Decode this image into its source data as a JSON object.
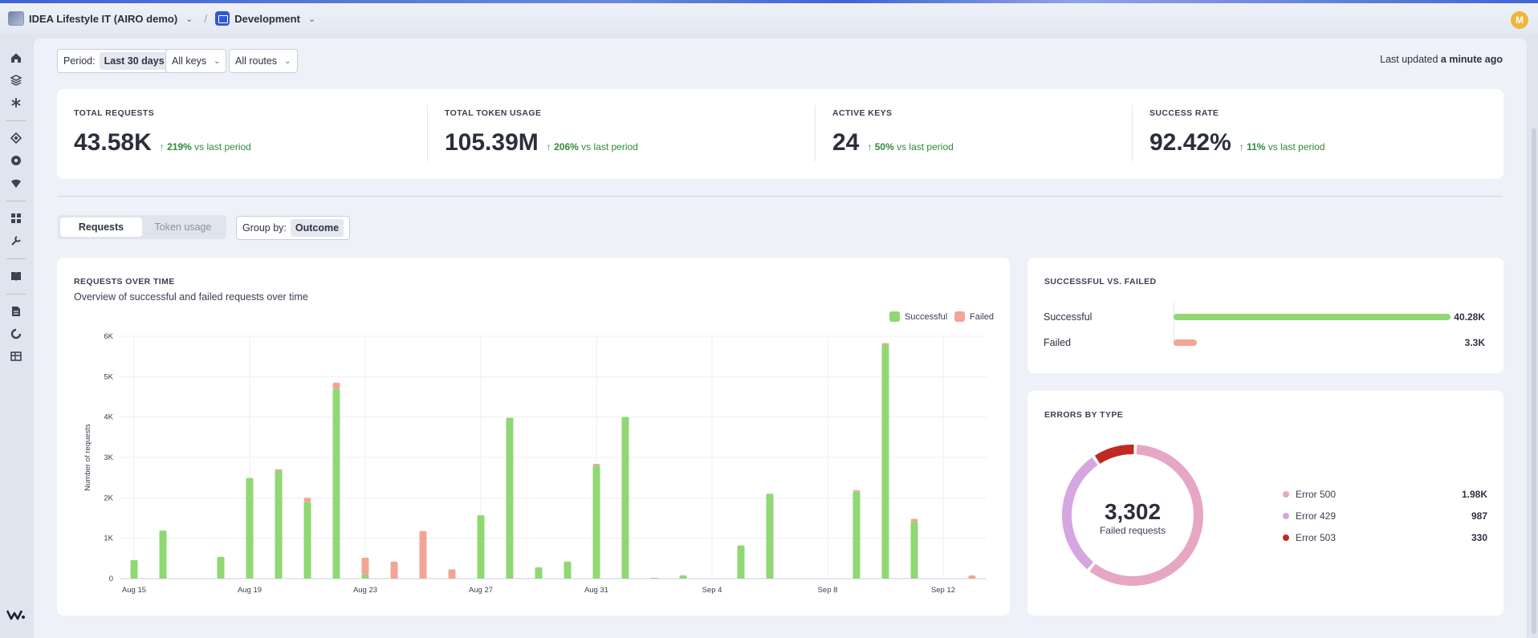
{
  "topbar": {
    "org_name": "IDEA Lifestyle IT (AIRO demo)",
    "env_name": "Development",
    "avatar_initial": "M"
  },
  "sidebar": {
    "icons": [
      "home-icon",
      "layers-icon",
      "snowflake-icon",
      "route-icon",
      "globe-icon",
      "shield-icon",
      "dashboard-icon",
      "wrench-icon",
      "book-icon",
      "document-icon",
      "refresh-icon",
      "table-icon",
      "logo-icon"
    ]
  },
  "filters": {
    "period_label": "Period:",
    "period_value": "Last 30 days",
    "keys": "All keys",
    "routes": "All routes",
    "updated_prefix": "Last updated",
    "updated_value": "a minute ago"
  },
  "kpis": [
    {
      "label": "TOTAL REQUESTS",
      "value": "43.58K",
      "delta": "219%",
      "delta_suffix": "vs last period"
    },
    {
      "label": "TOTAL TOKEN USAGE",
      "value": "105.39M",
      "delta": "206%",
      "delta_suffix": "vs last period"
    },
    {
      "label": "ACTIVE KEYS",
      "value": "24",
      "delta": "50%",
      "delta_suffix": "vs last period"
    },
    {
      "label": "SUCCESS RATE",
      "value": "92.42%",
      "delta": "11%",
      "delta_suffix": "vs last period"
    }
  ],
  "tabs": {
    "requests": "Requests",
    "token_usage": "Token usage",
    "group_label": "Group by:",
    "group_value": "Outcome"
  },
  "requests_chart": {
    "title": "REQUESTS OVER TIME",
    "subtitle": "Overview of successful and failed requests over time"
  },
  "success_failed": {
    "title": "SUCCESSFUL VS. FAILED",
    "rows": [
      {
        "label": "Successful",
        "value": "40.28K",
        "fraction": 1.0,
        "color": "#8fd873"
      },
      {
        "label": "Failed",
        "value": "3.3K",
        "fraction": 0.085,
        "color": "#f4a497"
      }
    ]
  },
  "errors": {
    "title": "ERRORS BY TYPE",
    "total": "3,302",
    "total_label": "Failed requests",
    "rows": [
      {
        "label": "Error 500",
        "value": "1.98K",
        "color": "#e6a6c4"
      },
      {
        "label": "Error 429",
        "value": "987",
        "color": "#d6a6e0"
      },
      {
        "label": "Error 503",
        "value": "330",
        "color": "#c12a22"
      }
    ]
  },
  "chart_data": {
    "type": "bar",
    "title": "REQUESTS OVER TIME",
    "ylabel": "Number of requests",
    "ylim": [
      0,
      6000
    ],
    "yticks": [
      "0",
      "1K",
      "2K",
      "3K",
      "4K",
      "5K",
      "6K"
    ],
    "xtick_labels": [
      "Aug 15",
      "Aug 19",
      "Aug 23",
      "Aug 27",
      "Aug 31",
      "Sep 4",
      "Sep 8",
      "Sep 12"
    ],
    "legend_position": "top-right",
    "categories": [
      "Aug 15",
      "Aug 16",
      "Aug 17",
      "Aug 18",
      "Aug 19",
      "Aug 20",
      "Aug 21",
      "Aug 22",
      "Aug 23",
      "Aug 24",
      "Aug 25",
      "Aug 26",
      "Aug 27",
      "Aug 28",
      "Aug 29",
      "Aug 30",
      "Aug 31",
      "Sep 1",
      "Sep 2",
      "Sep 3",
      "Sep 4",
      "Sep 5",
      "Sep 6",
      "Sep 7",
      "Sep 8",
      "Sep 9",
      "Sep 10",
      "Sep 11",
      "Sep 12",
      "Sep 13"
    ],
    "series": [
      {
        "name": "Successful",
        "color": "#8fd873",
        "values": [
          460,
          1190,
          0,
          540,
          2490,
          2680,
          1900,
          4700,
          100,
          0,
          0,
          0,
          1570,
          3980,
          280,
          420,
          2800,
          4000,
          20,
          80,
          0,
          820,
          2100,
          0,
          0,
          2150,
          5800,
          1400,
          0,
          0
        ]
      },
      {
        "name": "Failed",
        "color": "#f4a497",
        "values": [
          0,
          0,
          0,
          0,
          0,
          30,
          100,
          150,
          420,
          420,
          1180,
          230,
          0,
          0,
          0,
          0,
          40,
          0,
          0,
          0,
          0,
          0,
          0,
          0,
          0,
          40,
          30,
          80,
          0,
          80
        ]
      }
    ]
  }
}
